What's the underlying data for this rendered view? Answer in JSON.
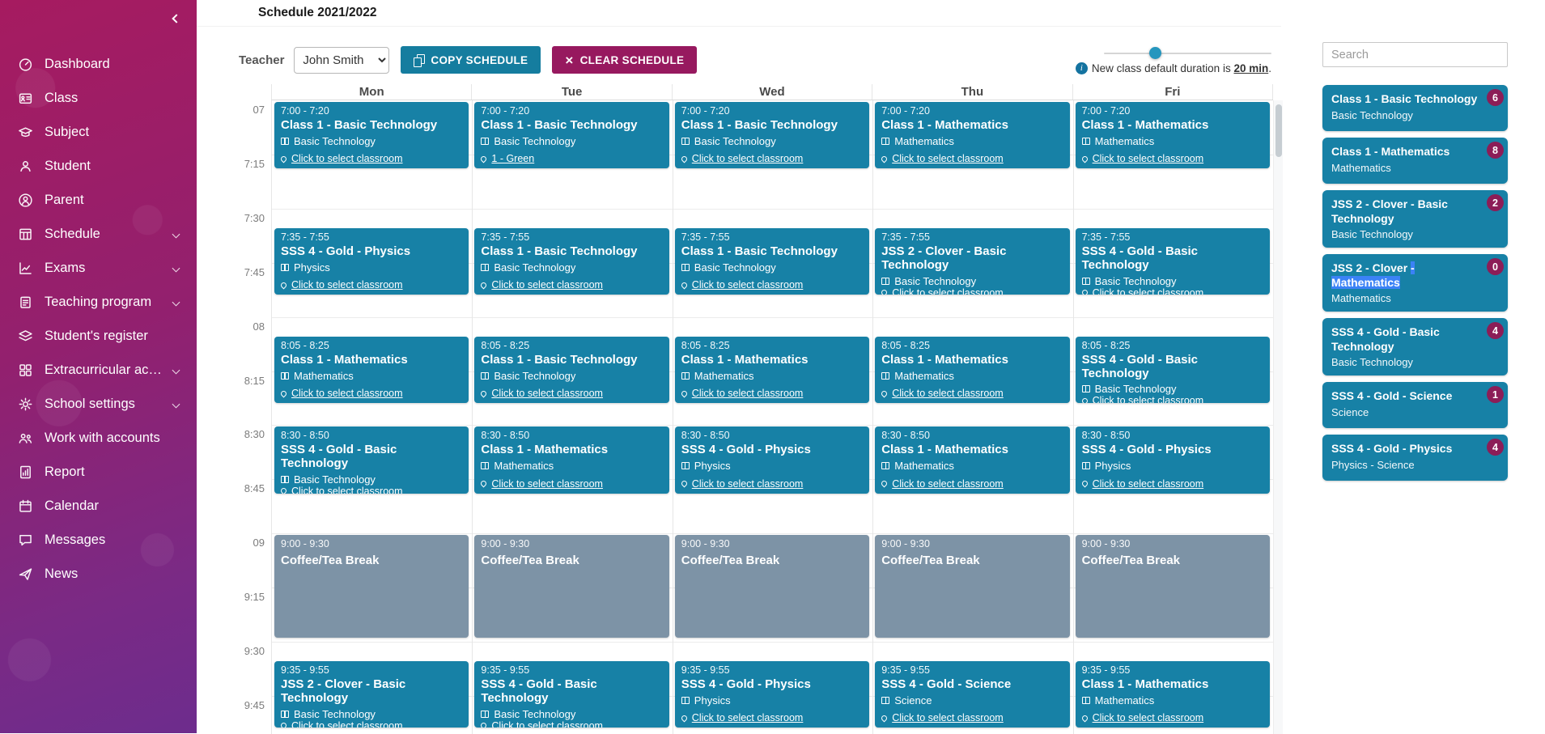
{
  "colors": {
    "accent_teal": "#1781a6",
    "brand_magenta": "#97195f",
    "badge_maroon": "#8c1d57",
    "break_gray": "#7d93a6",
    "selection_blue": "#3b82f6",
    "slider_handle": "#2596be"
  },
  "header": {
    "title": "Schedule 2021/2022"
  },
  "sidebar": {
    "items": [
      {
        "id": "dashboard",
        "label": "Dashboard",
        "icon": "dashboard-icon",
        "expandable": false
      },
      {
        "id": "class",
        "label": "Class",
        "icon": "class-icon",
        "expandable": false
      },
      {
        "id": "subject",
        "label": "Subject",
        "icon": "subject-icon",
        "expandable": false
      },
      {
        "id": "student",
        "label": "Student",
        "icon": "student-icon",
        "expandable": false
      },
      {
        "id": "parent",
        "label": "Parent",
        "icon": "parent-icon",
        "expandable": false
      },
      {
        "id": "schedule",
        "label": "Schedule",
        "icon": "schedule-icon",
        "expandable": true
      },
      {
        "id": "exams",
        "label": "Exams",
        "icon": "exams-icon",
        "expandable": true
      },
      {
        "id": "teaching-program",
        "label": "Teaching program",
        "icon": "teaching-program-icon",
        "expandable": true
      },
      {
        "id": "students-register",
        "label": "Student's register",
        "icon": "register-icon",
        "expandable": false
      },
      {
        "id": "extracurricular",
        "label": "Extracurricular activ...",
        "icon": "extracurricular-icon",
        "expandable": true
      },
      {
        "id": "school-settings",
        "label": "School settings",
        "icon": "settings-icon",
        "expandable": true
      },
      {
        "id": "work-with-accounts",
        "label": "Work with accounts",
        "icon": "work-accounts-icon",
        "expandable": false
      },
      {
        "id": "report",
        "label": "Report",
        "icon": "report-icon",
        "expandable": false
      },
      {
        "id": "calendar",
        "label": "Calendar",
        "icon": "calendar-icon",
        "expandable": false
      },
      {
        "id": "messages",
        "label": "Messages",
        "icon": "messages-icon",
        "expandable": false
      },
      {
        "id": "news",
        "label": "News",
        "icon": "news-icon",
        "expandable": false
      }
    ]
  },
  "toolbar": {
    "teacher_label": "Teacher",
    "teacher_selected": "John Smith",
    "copy_button": "COPY SCHEDULE",
    "clear_button": "CLEAR SCHEDULE",
    "clear_icon_glyph": "×",
    "info_icon_glyph": "i",
    "note_prefix": "New class default duration is ",
    "note_value": "20 min",
    "note_suffix": "."
  },
  "calendar": {
    "days": [
      "Mon",
      "Tue",
      "Wed",
      "Thu",
      "Fri"
    ],
    "time_labels": [
      {
        "t": "07",
        "min": 0
      },
      {
        "t": "7:15",
        "min": 15
      },
      {
        "t": "7:30",
        "min": 30
      },
      {
        "t": "7:45",
        "min": 45
      },
      {
        "t": "08",
        "min": 60
      },
      {
        "t": "8:15",
        "min": 75
      },
      {
        "t": "8:30",
        "min": 90
      },
      {
        "t": "8:45",
        "min": 105
      },
      {
        "t": "09",
        "min": 120
      },
      {
        "t": "9:15",
        "min": 135
      },
      {
        "t": "9:30",
        "min": 150
      },
      {
        "t": "9:45",
        "min": 165
      }
    ],
    "events": [
      {
        "day": 0,
        "start": 0,
        "dur": 20,
        "time": "7:00 - 7:20",
        "title": "Class 1 - Basic Technology",
        "subject": "Basic Technology",
        "room": "Click to select classroom",
        "type": "class"
      },
      {
        "day": 1,
        "start": 0,
        "dur": 20,
        "time": "7:00 - 7:20",
        "title": "Class 1 - Basic Technology",
        "subject": "Basic Technology",
        "room": "1 - Green",
        "type": "class"
      },
      {
        "day": 2,
        "start": 0,
        "dur": 20,
        "time": "7:00 - 7:20",
        "title": "Class 1 - Basic Technology",
        "subject": "Basic Technology",
        "room": "Click to select classroom",
        "type": "class"
      },
      {
        "day": 3,
        "start": 0,
        "dur": 20,
        "time": "7:00 - 7:20",
        "title": "Class 1 - Mathematics",
        "subject": "Mathematics",
        "room": "Click to select classroom",
        "type": "class"
      },
      {
        "day": 4,
        "start": 0,
        "dur": 20,
        "time": "7:00 - 7:20",
        "title": "Class 1 - Mathematics",
        "subject": "Mathematics",
        "room": "Click to select classroom",
        "type": "class"
      },
      {
        "day": 0,
        "start": 35,
        "dur": 20,
        "time": "7:35 - 7:55",
        "title": "SSS 4 - Gold - Physics",
        "subject": "Physics",
        "room": "Click to select classroom",
        "type": "class"
      },
      {
        "day": 1,
        "start": 35,
        "dur": 20,
        "time": "7:35 - 7:55",
        "title": "Class 1 - Basic Technology",
        "subject": "Basic Technology",
        "room": "Click to select classroom",
        "type": "class"
      },
      {
        "day": 2,
        "start": 35,
        "dur": 20,
        "time": "7:35 - 7:55",
        "title": "Class 1 - Basic Technology",
        "subject": "Basic Technology",
        "room": "Click to select classroom",
        "type": "class"
      },
      {
        "day": 3,
        "start": 35,
        "dur": 20,
        "time": "7:35 - 7:55",
        "title": "JSS 2 - Clover - Basic Technology",
        "subject": "Basic Technology",
        "room": "Click to select classroom",
        "type": "class"
      },
      {
        "day": 4,
        "start": 35,
        "dur": 20,
        "time": "7:35 - 7:55",
        "title": "SSS 4 - Gold - Basic Technology",
        "subject": "Basic Technology",
        "room": "Click to select classroom",
        "type": "class"
      },
      {
        "day": 0,
        "start": 65,
        "dur": 20,
        "time": "8:05 - 8:25",
        "title": "Class 1 - Mathematics",
        "subject": "Mathematics",
        "room": "Click to select classroom",
        "type": "class"
      },
      {
        "day": 1,
        "start": 65,
        "dur": 20,
        "time": "8:05 - 8:25",
        "title": "Class 1 - Basic Technology",
        "subject": "Basic Technology",
        "room": "Click to select classroom",
        "type": "class"
      },
      {
        "day": 2,
        "start": 65,
        "dur": 20,
        "time": "8:05 - 8:25",
        "title": "Class 1 - Mathematics",
        "subject": "Mathematics",
        "room": "Click to select classroom",
        "type": "class"
      },
      {
        "day": 3,
        "start": 65,
        "dur": 20,
        "time": "8:05 - 8:25",
        "title": "Class 1 - Mathematics",
        "subject": "Mathematics",
        "room": "Click to select classroom",
        "type": "class"
      },
      {
        "day": 4,
        "start": 65,
        "dur": 20,
        "time": "8:05 - 8:25",
        "title": "SSS 4 - Gold - Basic Technology",
        "subject": "Basic Technology",
        "room": "Click to select classroom",
        "type": "class"
      },
      {
        "day": 0,
        "start": 90,
        "dur": 20,
        "time": "8:30 - 8:50",
        "title": "SSS 4 - Gold - Basic Technology",
        "subject": "Basic Technology",
        "room": "Click to select classroom",
        "type": "class"
      },
      {
        "day": 1,
        "start": 90,
        "dur": 20,
        "time": "8:30 - 8:50",
        "title": "Class 1 - Mathematics",
        "subject": "Mathematics",
        "room": "Click to select classroom",
        "type": "class"
      },
      {
        "day": 2,
        "start": 90,
        "dur": 20,
        "time": "8:30 - 8:50",
        "title": "SSS 4 - Gold - Physics",
        "subject": "Physics",
        "room": "Click to select classroom",
        "type": "class"
      },
      {
        "day": 3,
        "start": 90,
        "dur": 20,
        "time": "8:30 - 8:50",
        "title": "Class 1 - Mathematics",
        "subject": "Mathematics",
        "room": "Click to select classroom",
        "type": "class"
      },
      {
        "day": 4,
        "start": 90,
        "dur": 20,
        "time": "8:30 - 8:50",
        "title": "SSS 4 - Gold - Physics",
        "subject": "Physics",
        "room": "Click to select classroom",
        "type": "class"
      },
      {
        "day": 0,
        "start": 120,
        "dur": 30,
        "time": "9:00 - 9:30",
        "title": "Coffee/Tea Break",
        "subject": null,
        "room": null,
        "type": "break"
      },
      {
        "day": 1,
        "start": 120,
        "dur": 30,
        "time": "9:00 - 9:30",
        "title": "Coffee/Tea Break",
        "subject": null,
        "room": null,
        "type": "break"
      },
      {
        "day": 2,
        "start": 120,
        "dur": 30,
        "time": "9:00 - 9:30",
        "title": "Coffee/Tea Break",
        "subject": null,
        "room": null,
        "type": "break"
      },
      {
        "day": 3,
        "start": 120,
        "dur": 30,
        "time": "9:00 - 9:30",
        "title": "Coffee/Tea Break",
        "subject": null,
        "room": null,
        "type": "break"
      },
      {
        "day": 4,
        "start": 120,
        "dur": 30,
        "time": "9:00 - 9:30",
        "title": "Coffee/Tea Break",
        "subject": null,
        "room": null,
        "type": "break"
      },
      {
        "day": 0,
        "start": 155,
        "dur": 20,
        "time": "9:35 - 9:55",
        "title": "JSS 2 - Clover - Basic Technology",
        "subject": "Basic Technology",
        "room": "Click to select classroom",
        "type": "class"
      },
      {
        "day": 1,
        "start": 155,
        "dur": 20,
        "time": "9:35 - 9:55",
        "title": "SSS 4 - Gold - Basic Technology",
        "subject": "Basic Technology",
        "room": "Click to select classroom",
        "type": "class"
      },
      {
        "day": 2,
        "start": 155,
        "dur": 20,
        "time": "9:35 - 9:55",
        "title": "SSS 4 - Gold - Physics",
        "subject": "Physics",
        "room": "Click to select classroom",
        "type": "class"
      },
      {
        "day": 3,
        "start": 155,
        "dur": 20,
        "time": "9:35 - 9:55",
        "title": "SSS 4 - Gold - Science",
        "subject": "Science",
        "room": "Click to select classroom",
        "type": "class"
      },
      {
        "day": 4,
        "start": 155,
        "dur": 20,
        "time": "9:35 - 9:55",
        "title": "Class 1 - Mathematics",
        "subject": "Mathematics",
        "room": "Click to select classroom",
        "type": "class"
      }
    ]
  },
  "class_panel": {
    "search_placeholder": "Search",
    "items": [
      {
        "title": "Class 1 - Basic Technology",
        "highlight": null,
        "subtitle": "Basic Technology",
        "count": 6
      },
      {
        "title": "Class 1 - Mathematics",
        "highlight": null,
        "subtitle": "Mathematics",
        "count": 8
      },
      {
        "title": "JSS 2 - Clover - Basic Technology",
        "highlight": null,
        "subtitle": "Basic Technology",
        "count": 2
      },
      {
        "title": "JSS 2 - Clover - Mathematics",
        "highlight": "- Mathematics",
        "subtitle": "Mathematics",
        "count": 0
      },
      {
        "title": "SSS 4 - Gold - Basic Technology",
        "highlight": null,
        "subtitle": "Basic Technology",
        "count": 4
      },
      {
        "title": "SSS 4 - Gold - Science",
        "highlight": null,
        "subtitle": "Science",
        "count": 1
      },
      {
        "title": "SSS 4 - Gold - Physics",
        "highlight": null,
        "subtitle": "Physics - Science",
        "count": 4
      }
    ]
  }
}
